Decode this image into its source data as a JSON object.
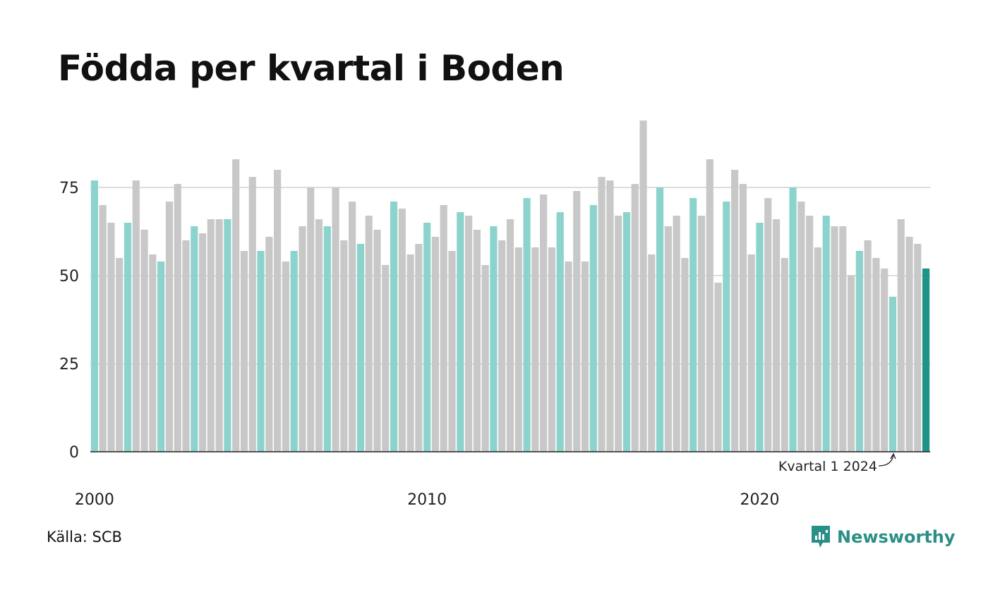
{
  "title": "Födda per kvartal i Boden",
  "source": "Källa: SCB",
  "brand": {
    "name": "Newsworthy",
    "icon": "newsworthy-logo-icon"
  },
  "colors": {
    "highlight_q1": "#8dd3cd",
    "other": "#c8c8c8",
    "latest": "#1e9387",
    "grid": "#dddddd",
    "axis": "#222222",
    "brand": "#2a8f86"
  },
  "chart_data": {
    "type": "bar",
    "title": "Födda per kvartal i Boden",
    "xlabel": "",
    "ylabel": "",
    "ylim": [
      0,
      95
    ],
    "yticks": [
      0,
      25,
      50,
      75
    ],
    "grid": true,
    "x_tick_labels": [
      "2000",
      "2010",
      "2020"
    ],
    "start": {
      "year": 2000,
      "quarter": 1
    },
    "annotation": {
      "text": "Kvartal 1 2024",
      "target_index": 96
    },
    "values": [
      77,
      70,
      65,
      55,
      65,
      77,
      63,
      56,
      54,
      71,
      76,
      60,
      64,
      62,
      66,
      66,
      66,
      83,
      57,
      78,
      57,
      61,
      80,
      54,
      57,
      64,
      75,
      66,
      64,
      75,
      60,
      71,
      59,
      67,
      63,
      53,
      71,
      69,
      56,
      59,
      65,
      61,
      70,
      57,
      68,
      67,
      63,
      53,
      64,
      60,
      66,
      58,
      72,
      58,
      73,
      58,
      68,
      54,
      74,
      54,
      70,
      78,
      77,
      67,
      68,
      76,
      94,
      56,
      75,
      64,
      67,
      55,
      72,
      67,
      83,
      48,
      71,
      80,
      76,
      56,
      65,
      72,
      66,
      55,
      75,
      71,
      67,
      58,
      67,
      64,
      64,
      50,
      57,
      60,
      55,
      52,
      44,
      66,
      61,
      59,
      52
    ]
  }
}
